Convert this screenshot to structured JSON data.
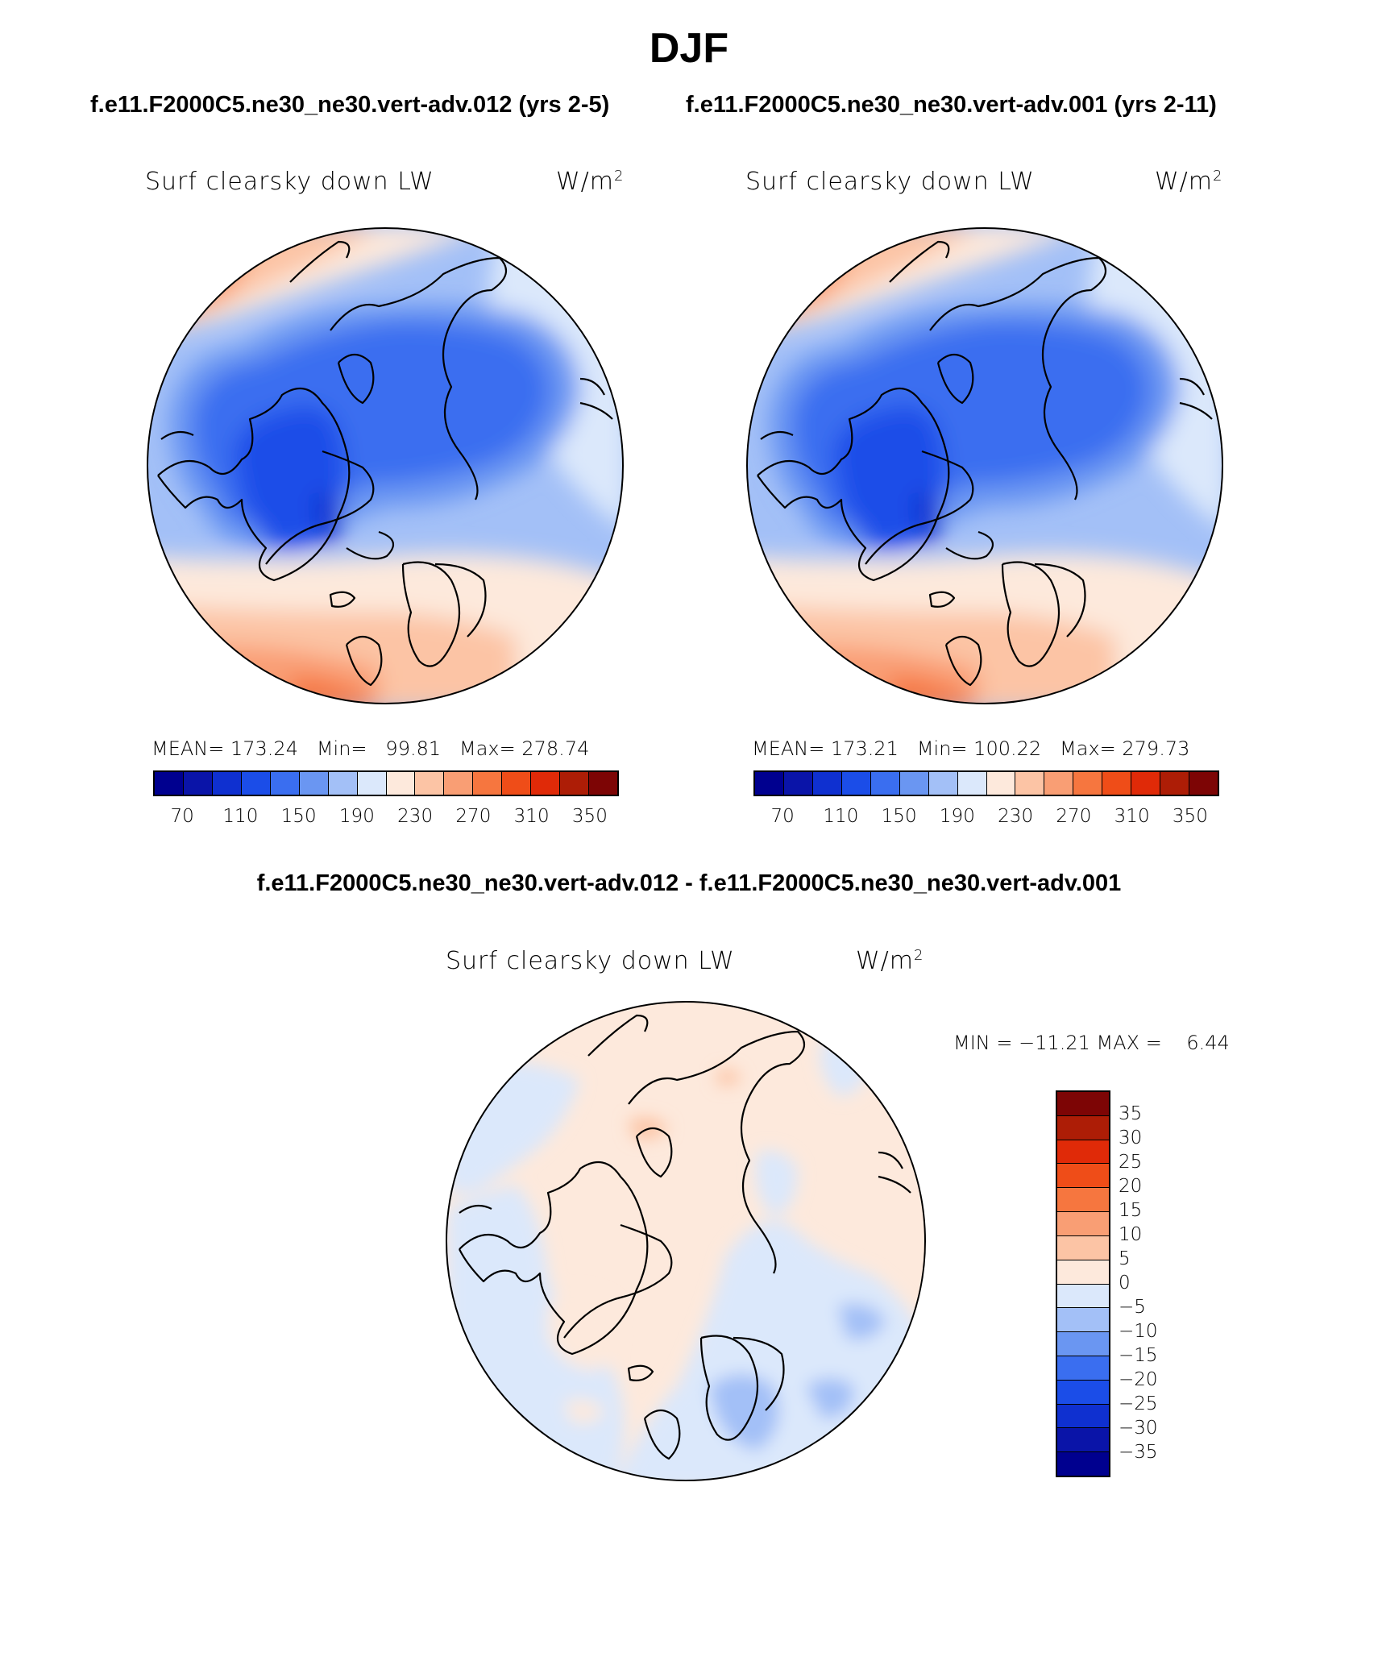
{
  "figure": {
    "title": "DJF"
  },
  "panels": [
    {
      "subtitle": "f.e11.F2000C5.ne30_ne30.vert-adv.012 (yrs 2-5)",
      "variable": "Surf clearsky down LW",
      "units": "W/m",
      "units_sup": "2",
      "stats": "MEAN= 173.24   Min=   99.81   Max= 278.74"
    },
    {
      "subtitle": "f.e11.F2000C5.ne30_ne30.vert-adv.001 (yrs 2-11)",
      "variable": "Surf clearsky down LW",
      "units": "W/m",
      "units_sup": "2",
      "stats": "MEAN= 173.21   Min= 100.22   Max= 279.73"
    }
  ],
  "diff_panel": {
    "subtitle": "f.e11.F2000C5.ne30_ne30.vert-adv.012 - f.e11.F2000C5.ne30_ne30.vert-adv.001",
    "variable": "Surf clearsky down LW",
    "units": "W/m",
    "units_sup": "2",
    "stats": "MIN = −11.21 MAX =    6.44"
  },
  "colorbar_main": {
    "colors": [
      "#00008f",
      "#0a14a8",
      "#0f30d0",
      "#1b4de8",
      "#3a6ef0",
      "#6a96f2",
      "#a3c0f7",
      "#dbe8fb",
      "#fde9dc",
      "#fcc4a5",
      "#f99e74",
      "#f6763f",
      "#ef4d18",
      "#e02a08",
      "#ad1d06",
      "#7d0505"
    ],
    "tick_labels": [
      "70",
      "110",
      "150",
      "190",
      "230",
      "270",
      "310",
      "350"
    ]
  },
  "colorbar_diff": {
    "colors": [
      "#7d0505",
      "#ad1d06",
      "#e02a08",
      "#ef4d18",
      "#f6763f",
      "#f99e74",
      "#fcc4a5",
      "#fde9dc",
      "#dbe8fb",
      "#a3c0f7",
      "#6a96f2",
      "#3a6ef0",
      "#1b4de8",
      "#0f30d0",
      "#0a14a8",
      "#00008f"
    ],
    "tick_labels": [
      "35",
      "30",
      "25",
      "20",
      "15",
      "10",
      "5",
      "0",
      "−5",
      "−10",
      "−15",
      "−20",
      "−25",
      "−30",
      "−35"
    ]
  }
}
